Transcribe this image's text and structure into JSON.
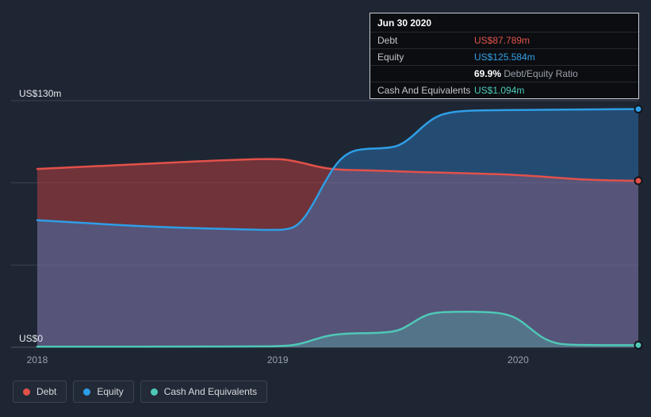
{
  "tooltip": {
    "date": "Jun 30 2020",
    "debt_label": "Debt",
    "debt_value": "US$87.789m",
    "equity_label": "Equity",
    "equity_value": "US$125.584m",
    "ratio_value": "69.9%",
    "ratio_label": "Debt/Equity Ratio",
    "cash_label": "Cash And Equivalents",
    "cash_value": "US$1.094m"
  },
  "legend": {
    "items": [
      {
        "label": "Debt",
        "color": "#e2514a"
      },
      {
        "label": "Equity",
        "color": "#2e9ee6"
      },
      {
        "label": "Cash And Equivalents",
        "color": "#4fc8b7"
      }
    ]
  },
  "chart_data": {
    "type": "area",
    "x_range": [
      2018.0,
      2020.5
    ],
    "y_range": [
      0,
      130
    ],
    "y_axis_top_label": "US$130m",
    "y_axis_bottom_label": "US$0",
    "x_ticks": [
      2018,
      2019,
      2020
    ],
    "gridlines_m": [
      0,
      43.333,
      86.667,
      130
    ],
    "grid": true,
    "legend_position": "bottom-left",
    "colors": {
      "background": "#1f2633",
      "gridline": "#3a4150",
      "axis": "#4b5466",
      "tick_text": "#98a1b0"
    },
    "series": [
      {
        "name": "Debt",
        "color": "#e2514a",
        "fill": "rgba(224,70,68,0.42)",
        "points": [
          [
            2018.0,
            94
          ],
          [
            2018.25,
            95.5
          ],
          [
            2018.5,
            97
          ],
          [
            2018.75,
            98.5
          ],
          [
            2019.0,
            99.5
          ],
          [
            2019.08,
            98
          ],
          [
            2019.17,
            95
          ],
          [
            2019.25,
            93.5
          ],
          [
            2019.4,
            93.2
          ],
          [
            2019.55,
            92.5
          ],
          [
            2019.75,
            91.8
          ],
          [
            2019.95,
            91.2
          ],
          [
            2020.1,
            90
          ],
          [
            2020.25,
            88.5
          ],
          [
            2020.4,
            87.9
          ],
          [
            2020.5,
            87.789
          ]
        ]
      },
      {
        "name": "Equity",
        "color": "#2e9ee6",
        "fill": "rgba(45,140,222,0.38)",
        "points": [
          [
            2018.0,
            67
          ],
          [
            2018.2,
            65.5
          ],
          [
            2018.4,
            64
          ],
          [
            2018.6,
            63
          ],
          [
            2018.8,
            62.3
          ],
          [
            2018.95,
            61.8
          ],
          [
            2019.05,
            62
          ],
          [
            2019.1,
            66
          ],
          [
            2019.15,
            76
          ],
          [
            2019.2,
            88
          ],
          [
            2019.25,
            98
          ],
          [
            2019.3,
            103
          ],
          [
            2019.35,
            104.5
          ],
          [
            2019.45,
            105
          ],
          [
            2019.5,
            106
          ],
          [
            2019.55,
            110
          ],
          [
            2019.6,
            116
          ],
          [
            2019.65,
            121
          ],
          [
            2019.7,
            123.5
          ],
          [
            2019.78,
            124.8
          ],
          [
            2019.9,
            125
          ],
          [
            2020.1,
            125.2
          ],
          [
            2020.3,
            125.4
          ],
          [
            2020.5,
            125.584
          ]
        ]
      },
      {
        "name": "Cash And Equivalents",
        "color": "#4fc8b7",
        "fill": "rgba(79,200,183,0.28)",
        "points": [
          [
            2018.0,
            0.3
          ],
          [
            2018.3,
            0.3
          ],
          [
            2018.6,
            0.35
          ],
          [
            2018.9,
            0.4
          ],
          [
            2019.0,
            0.5
          ],
          [
            2019.08,
            1.2
          ],
          [
            2019.15,
            4
          ],
          [
            2019.22,
            6.5
          ],
          [
            2019.3,
            7.3
          ],
          [
            2019.42,
            7.5
          ],
          [
            2019.5,
            8.5
          ],
          [
            2019.55,
            12
          ],
          [
            2019.6,
            16
          ],
          [
            2019.65,
            18.3
          ],
          [
            2019.75,
            18.8
          ],
          [
            2019.88,
            18.6
          ],
          [
            2019.95,
            17.5
          ],
          [
            2020.0,
            15
          ],
          [
            2020.05,
            10
          ],
          [
            2020.1,
            5
          ],
          [
            2020.15,
            2.3
          ],
          [
            2020.2,
            1.3
          ],
          [
            2020.35,
            1.1
          ],
          [
            2020.5,
            1.094
          ]
        ]
      }
    ]
  }
}
